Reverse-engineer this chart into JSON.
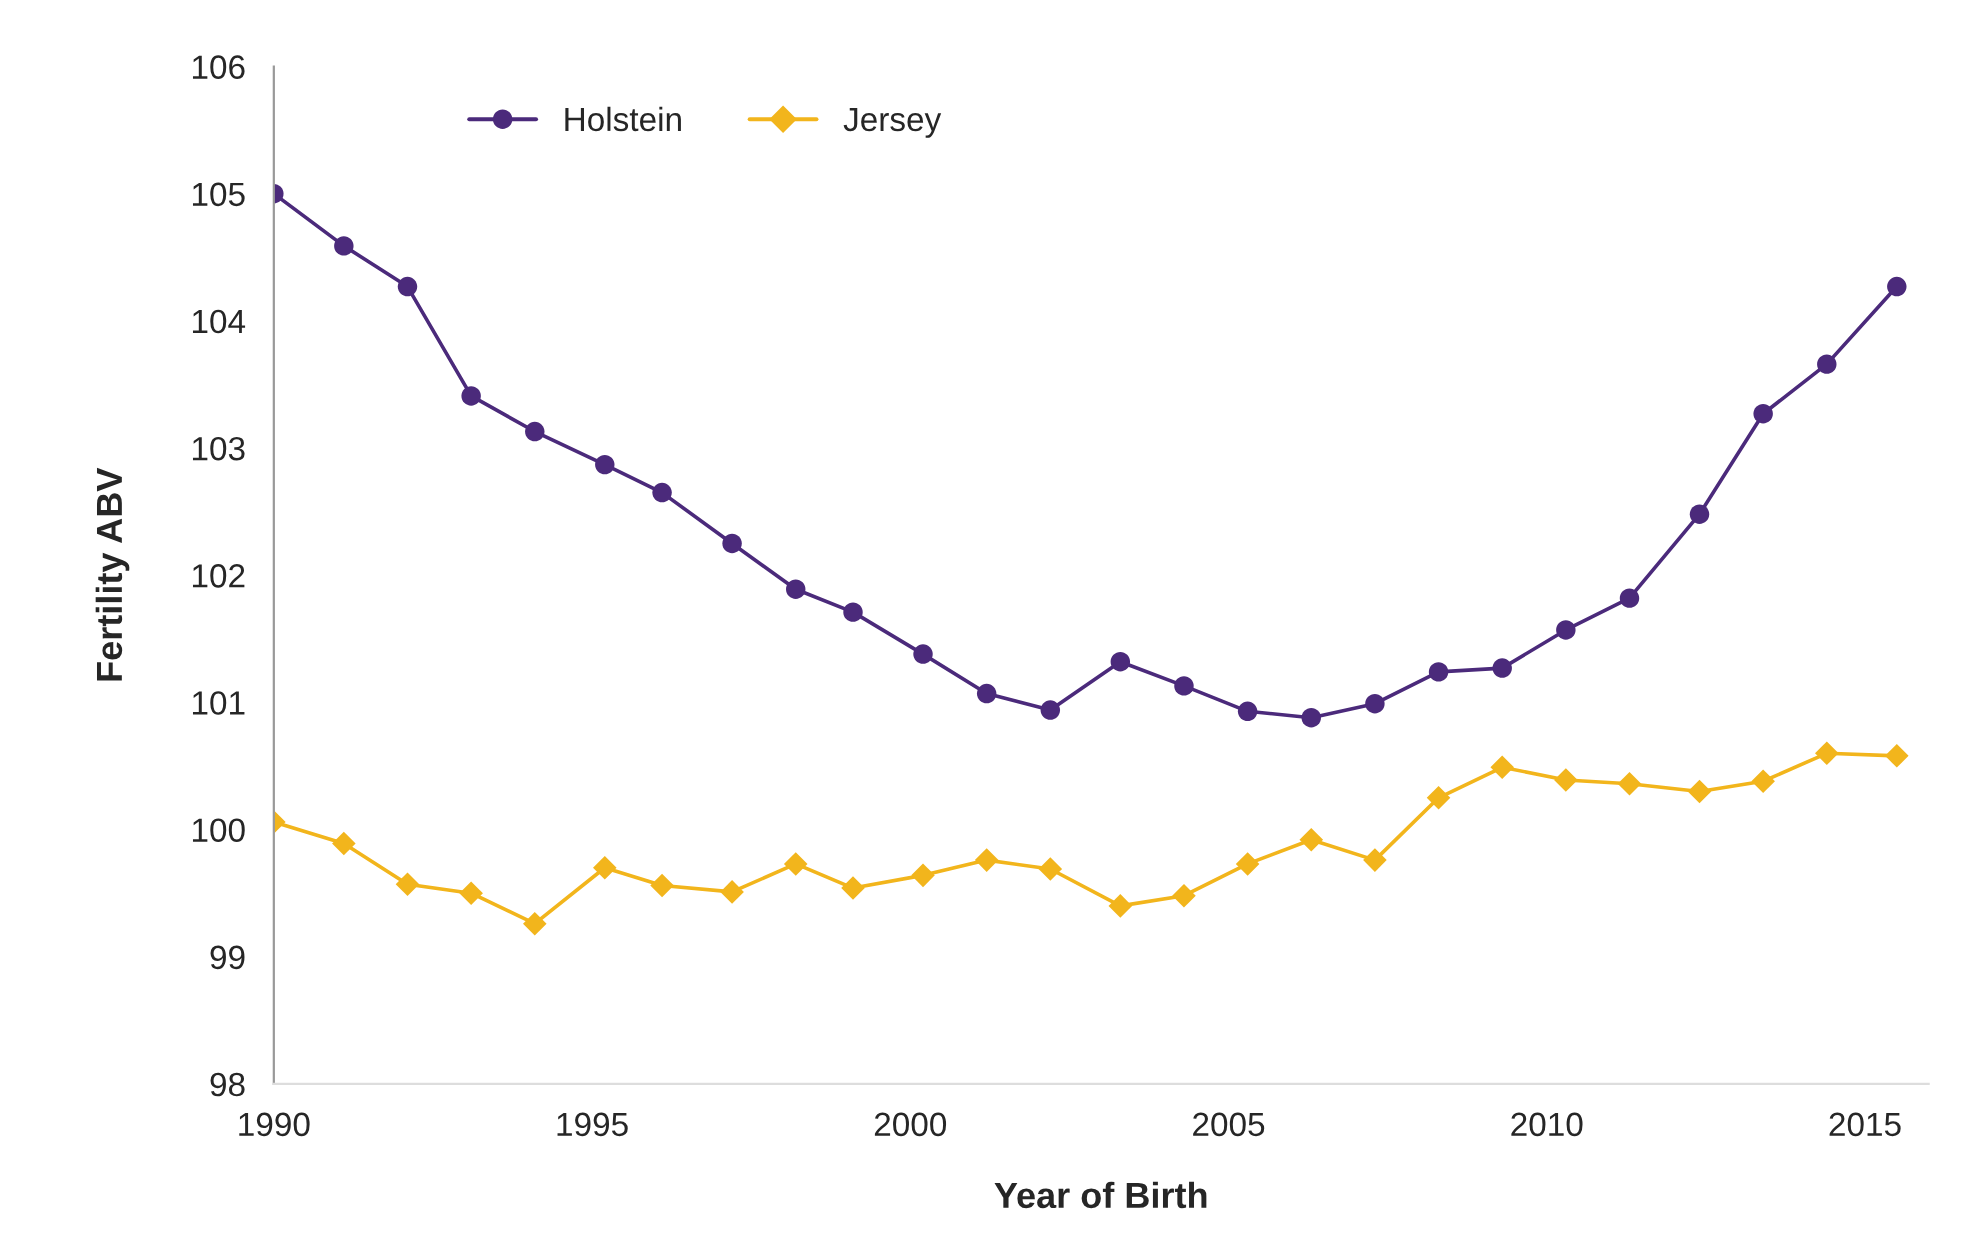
{
  "chart_data": {
    "type": "line",
    "xlabel": "Year of Birth",
    "ylabel": "Fertility ABV",
    "x": [
      1990,
      1991.1,
      1992.1,
      1993.1,
      1994.1,
      1995.2,
      1996.1,
      1997.2,
      1998.2,
      1999.1,
      2000.2,
      2001.2,
      2002.2,
      2003.3,
      2004.3,
      2005.3,
      2006.3,
      2007.3,
      2008.3,
      2009.3,
      2010.3,
      2011.3,
      2012.4,
      2013.4,
      2014.4,
      2015.5
    ],
    "series": [
      {
        "name": "Holstein",
        "color": "#4b2a7b",
        "marker": "circle",
        "values": [
          105.0,
          104.59,
          104.27,
          103.41,
          103.13,
          102.87,
          102.65,
          102.25,
          101.89,
          101.71,
          101.38,
          101.07,
          100.94,
          101.32,
          101.13,
          100.93,
          100.88,
          100.99,
          101.24,
          101.27,
          101.57,
          101.82,
          102.48,
          103.27,
          103.66,
          104.27
        ]
      },
      {
        "name": "Jersey",
        "color": "#f2b51c",
        "marker": "diamond",
        "values": [
          100.06,
          99.89,
          99.57,
          99.5,
          99.26,
          99.7,
          99.56,
          99.51,
          99.73,
          99.54,
          99.64,
          99.76,
          99.69,
          99.4,
          99.48,
          99.73,
          99.92,
          99.76,
          100.25,
          100.49,
          100.39,
          100.36,
          100.3,
          100.38,
          100.6,
          100.58
        ]
      }
    ],
    "xlim": [
      1990,
      2016
    ],
    "xticks": [
      1990,
      1995,
      2000,
      2005,
      2010,
      2015
    ],
    "ylim": [
      98,
      106
    ],
    "yticks": [
      98,
      99,
      100,
      101,
      102,
      103,
      104,
      105,
      106
    ],
    "grid": false,
    "legend": "top left",
    "line_style": "solid"
  }
}
